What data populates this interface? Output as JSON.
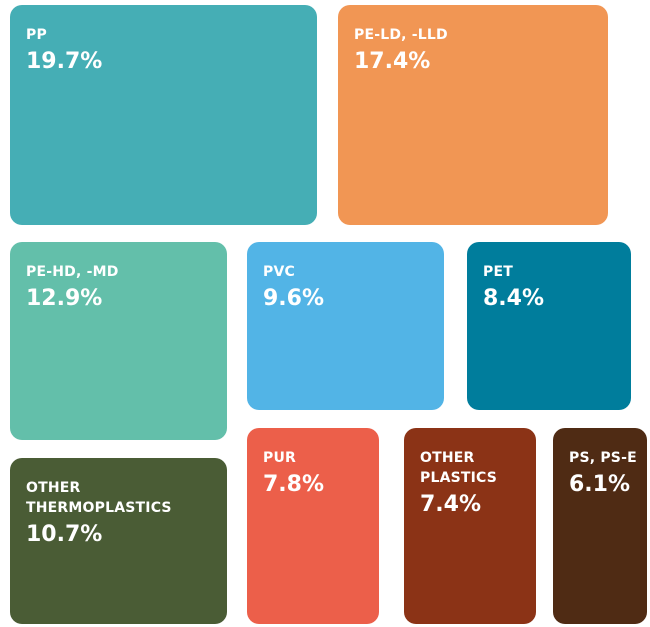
{
  "chart_data": {
    "type": "treemap",
    "categories": [
      "PP",
      "PE-LD, -LLD",
      "PE-HD, -MD",
      "PVC",
      "PET",
      "OTHER\nTHERMOPLASTICS",
      "PUR",
      "OTHER\nPLASTICS",
      "PS, PS-E"
    ],
    "values": [
      19.7,
      17.4,
      12.9,
      9.6,
      8.4,
      10.7,
      7.8,
      7.4,
      6.1
    ],
    "value_labels": [
      "19.7%",
      "17.4%",
      "12.9%",
      "9.6%",
      "8.4%",
      "10.7%",
      "7.8%",
      "7.4%",
      "6.1%"
    ],
    "colors": [
      "#45aeb5",
      "#f19654",
      "#63bfaa",
      "#52b4e6",
      "#007d9c",
      "#4a5c35",
      "#ec5f4a",
      "#8b3316",
      "#4f2b14"
    ]
  }
}
